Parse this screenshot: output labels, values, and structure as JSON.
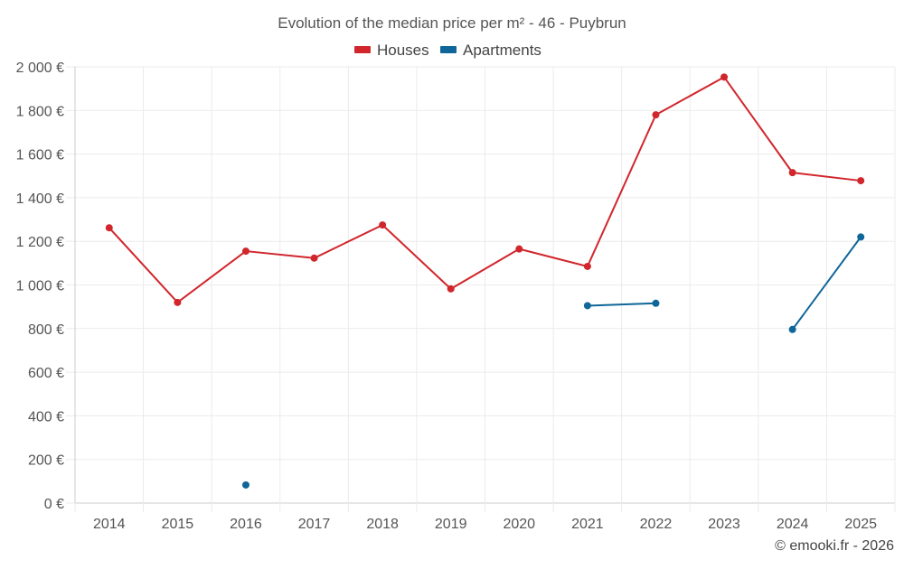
{
  "chart_data": {
    "type": "line",
    "title": "Evolution of the median price per m² - 46 - Puybrun",
    "xlabel": "",
    "ylabel": "",
    "categories": [
      "2014",
      "2015",
      "2016",
      "2017",
      "2018",
      "2019",
      "2020",
      "2021",
      "2022",
      "2023",
      "2024",
      "2025"
    ],
    "ylim": [
      0,
      2000
    ],
    "yticks": [
      0,
      200,
      400,
      600,
      800,
      1000,
      1200,
      1400,
      1600,
      1800,
      2000
    ],
    "ytick_labels": [
      "0 €",
      "200 €",
      "400 €",
      "600 €",
      "800 €",
      "1 000 €",
      "1 200 €",
      "1 400 €",
      "1 600 €",
      "1 800 €",
      "2 000 €"
    ],
    "grid": true,
    "legend_position": "top-center",
    "series": [
      {
        "name": "Houses",
        "color": "#d0262c",
        "values": [
          1262,
          920,
          1155,
          1123,
          1275,
          982,
          1165,
          1085,
          1780,
          1953,
          1515,
          1478
        ]
      },
      {
        "name": "Apartments",
        "color": "#0f6699",
        "values": [
          null,
          null,
          83,
          null,
          null,
          null,
          null,
          905,
          916,
          null,
          796,
          1220
        ]
      }
    ]
  },
  "credit": "© emooki.fr - 2026"
}
